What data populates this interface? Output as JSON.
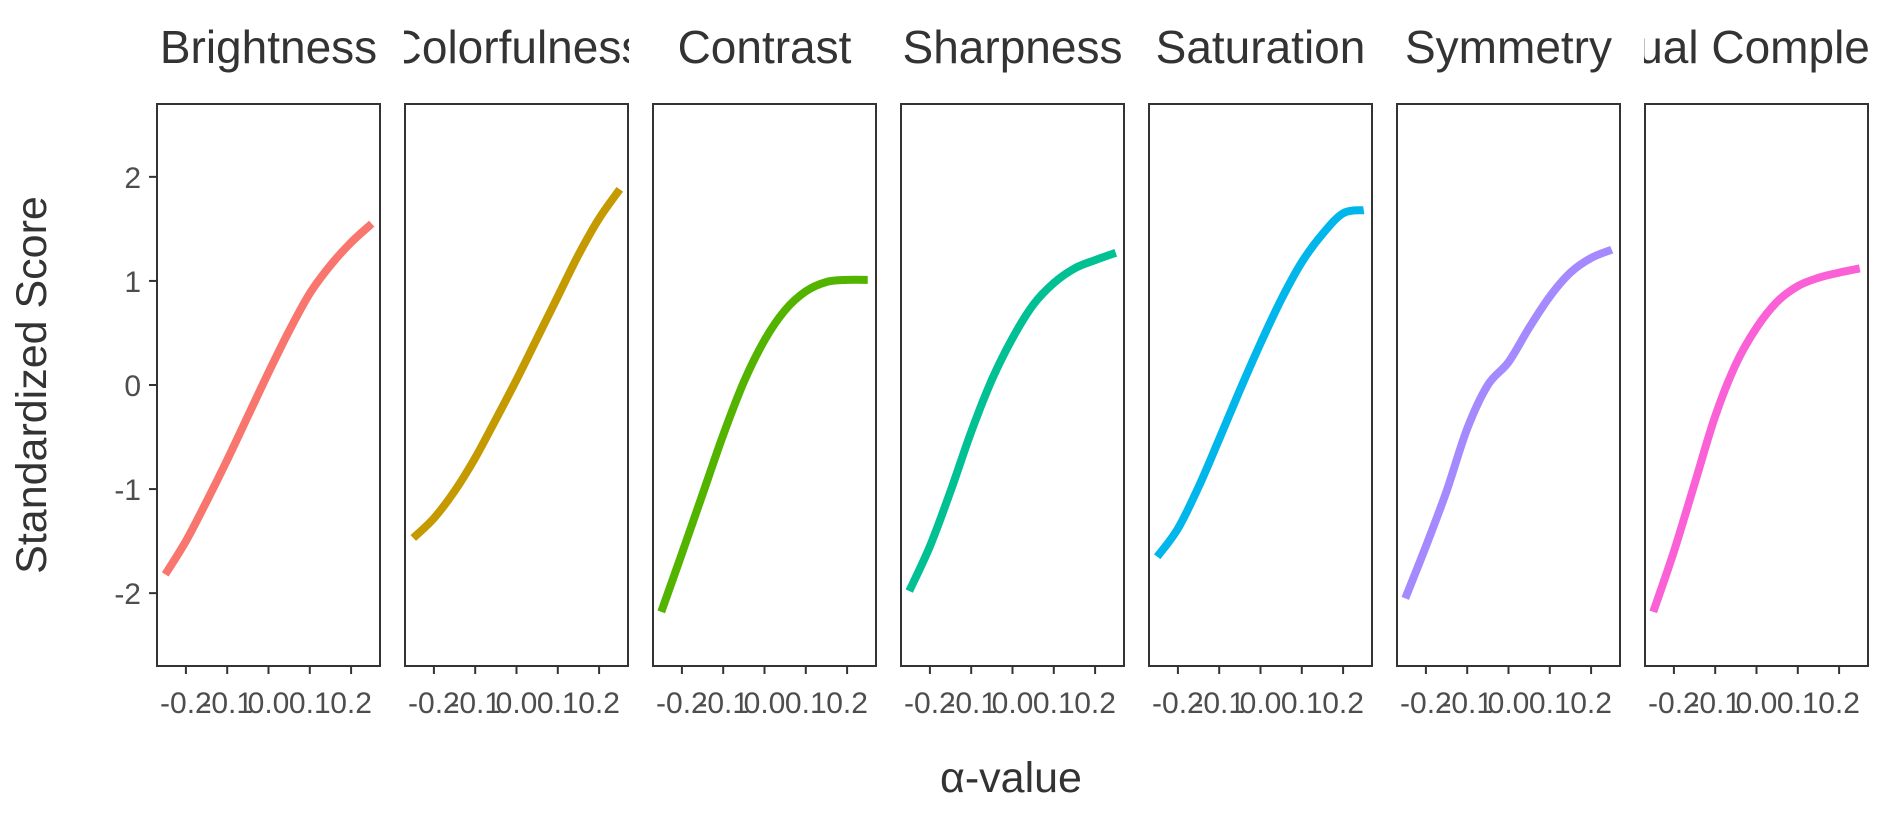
{
  "chart_data": {
    "type": "line",
    "facet_layout": "1 row x 7 panels, shared y-axis",
    "xlabel": "α-value",
    "ylabel": "Standardized Score",
    "xlim": [
      -0.27,
      0.27
    ],
    "ylim": [
      -2.7,
      2.7
    ],
    "x_ticks": [
      -0.2,
      -0.1,
      0.0,
      0.1,
      0.2
    ],
    "x_tick_labels": [
      "-0.2",
      "-0.1",
      "0.0",
      "0.1",
      "0.2"
    ],
    "y_ticks": [
      2,
      1,
      0,
      -1,
      -2
    ],
    "y_tick_labels": [
      "2",
      "1",
      "0",
      "-1",
      "-2"
    ],
    "grid": false,
    "legend": "none",
    "panels": [
      {
        "title": "Brightness",
        "color": "#F8766D",
        "x": [
          -0.25,
          -0.2,
          -0.15,
          -0.1,
          -0.05,
          0.0,
          0.05,
          0.1,
          0.15,
          0.2,
          0.25
        ],
        "y": [
          -1.82,
          -1.5,
          -1.12,
          -0.72,
          -0.3,
          0.12,
          0.52,
          0.88,
          1.15,
          1.37,
          1.55
        ]
      },
      {
        "title": "Colorfulness",
        "color": "#C49A00",
        "x": [
          -0.25,
          -0.2,
          -0.15,
          -0.1,
          -0.05,
          0.0,
          0.05,
          0.1,
          0.15,
          0.2,
          0.25
        ],
        "y": [
          -1.47,
          -1.28,
          -1.02,
          -0.7,
          -0.33,
          0.05,
          0.45,
          0.85,
          1.25,
          1.6,
          1.88
        ]
      },
      {
        "title": "Contrast",
        "color": "#53B400",
        "x": [
          -0.25,
          -0.2,
          -0.15,
          -0.1,
          -0.05,
          0.0,
          0.05,
          0.1,
          0.15,
          0.2,
          0.25
        ],
        "y": [
          -2.18,
          -1.62,
          -1.05,
          -0.48,
          0.03,
          0.43,
          0.72,
          0.9,
          0.99,
          1.01,
          1.01
        ]
      },
      {
        "title": "Sharpness",
        "color": "#00C094",
        "x": [
          -0.25,
          -0.2,
          -0.15,
          -0.1,
          -0.05,
          0.0,
          0.05,
          0.1,
          0.15,
          0.2,
          0.25
        ],
        "y": [
          -1.98,
          -1.55,
          -1.02,
          -0.45,
          0.05,
          0.45,
          0.77,
          0.98,
          1.12,
          1.2,
          1.27
        ]
      },
      {
        "title": "Saturation",
        "color": "#00B6EB",
        "x": [
          -0.25,
          -0.2,
          -0.15,
          -0.1,
          -0.05,
          0.0,
          0.05,
          0.1,
          0.15,
          0.2,
          0.25
        ],
        "y": [
          -1.65,
          -1.38,
          -0.98,
          -0.52,
          -0.05,
          0.4,
          0.82,
          1.18,
          1.45,
          1.65,
          1.68
        ]
      },
      {
        "title": "Symmetry",
        "color": "#A58AFF",
        "x": [
          -0.25,
          -0.2,
          -0.15,
          -0.1,
          -0.05,
          0.0,
          0.05,
          0.1,
          0.15,
          0.2,
          0.25
        ],
        "y": [
          -2.05,
          -1.55,
          -1.02,
          -0.42,
          0.0,
          0.22,
          0.55,
          0.85,
          1.08,
          1.22,
          1.3
        ]
      },
      {
        "title": "Visual Complexity",
        "color": "#FB61D7",
        "x": [
          -0.25,
          -0.2,
          -0.15,
          -0.1,
          -0.05,
          0.0,
          0.05,
          0.1,
          0.15,
          0.2,
          0.25
        ],
        "y": [
          -2.18,
          -1.6,
          -0.95,
          -0.3,
          0.2,
          0.55,
          0.8,
          0.95,
          1.03,
          1.08,
          1.12
        ]
      }
    ]
  }
}
